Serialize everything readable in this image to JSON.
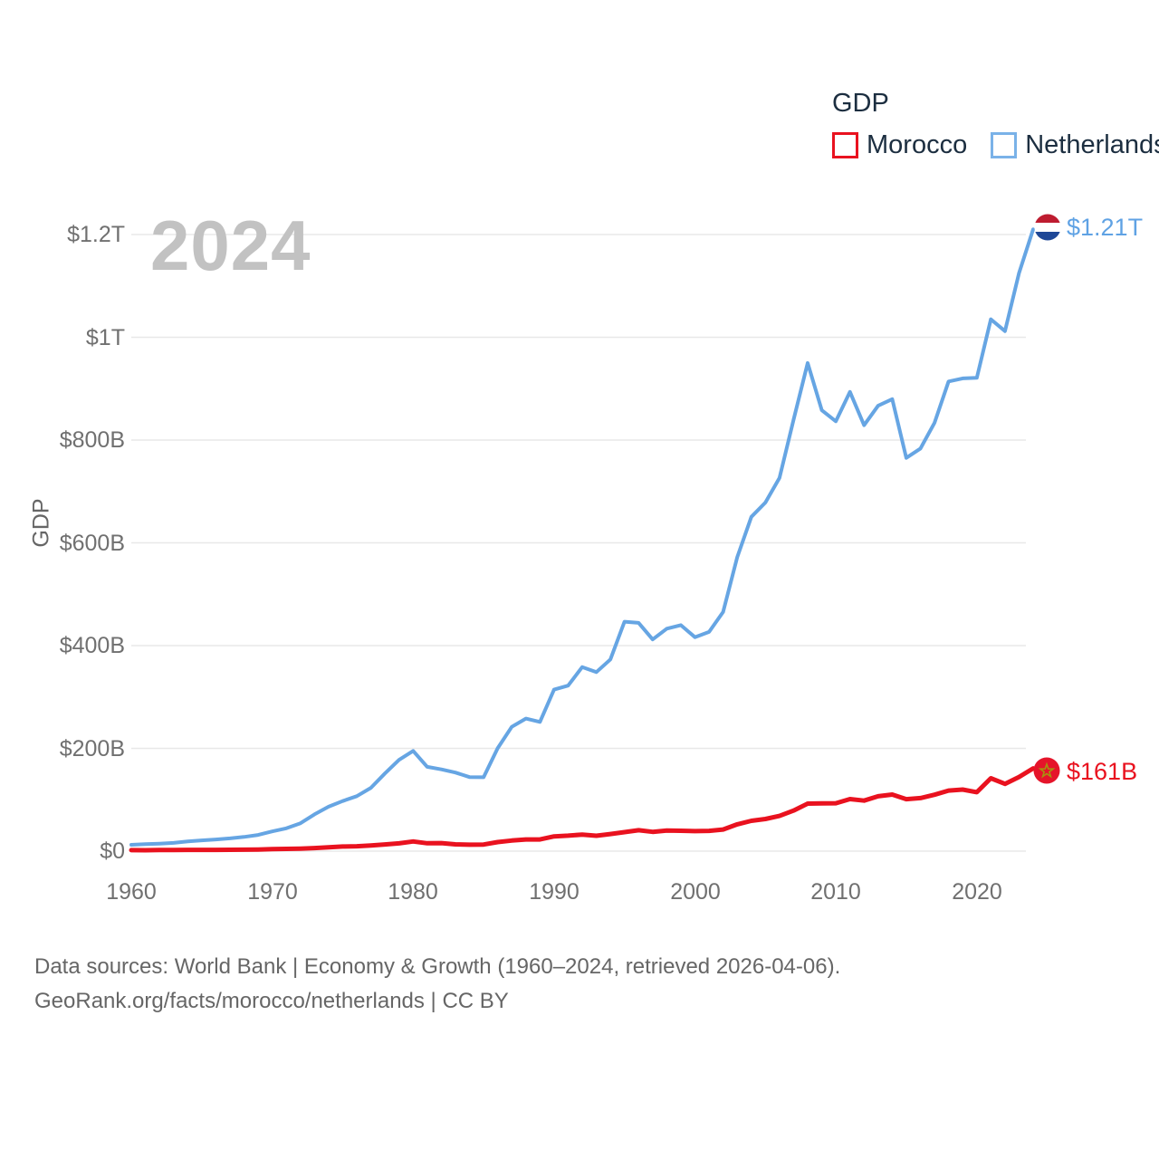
{
  "legend": {
    "title": "GDP",
    "items": [
      {
        "label": "Morocco",
        "color": "#E9121F"
      },
      {
        "label": "Netherlands",
        "color": "#7AB2E8"
      }
    ]
  },
  "chart_data": {
    "type": "line",
    "title": "GDP",
    "ylabel": "GDP",
    "xlabel": "",
    "watermark": "2024",
    "grid": "horizontal",
    "legend_position": "top-right",
    "x_start": 1960,
    "x_end": 2024,
    "ylim": [
      0,
      1260
    ],
    "y_ticks": [
      {
        "label": "$0",
        "value": 0
      },
      {
        "label": "$200B",
        "value": 200
      },
      {
        "label": "$400B",
        "value": 400
      },
      {
        "label": "$600B",
        "value": 600
      },
      {
        "label": "$800B",
        "value": 800
      },
      {
        "label": "$1T",
        "value": 1000
      },
      {
        "label": "$1.2T",
        "value": 1200
      }
    ],
    "x_ticks": [
      {
        "label": "1960",
        "value": 1960
      },
      {
        "label": "1970",
        "value": 1970
      },
      {
        "label": "1980",
        "value": 1980
      },
      {
        "label": "1990",
        "value": 1990
      },
      {
        "label": "2000",
        "value": 2000
      },
      {
        "label": "2010",
        "value": 2010
      },
      {
        "label": "2020",
        "value": 2020
      }
    ],
    "series": [
      {
        "name": "Morocco",
        "color": "#E9121F",
        "end_label": "$161B",
        "flag": "morocco",
        "values": [
          2.0,
          1.8,
          2.2,
          2.3,
          2.4,
          2.5,
          2.5,
          2.6,
          2.9,
          3.1,
          4.0,
          4.4,
          4.9,
          6.0,
          7.5,
          9.0,
          9.6,
          11.1,
          13.0,
          15.2,
          18.8,
          15.4,
          15.6,
          13.3,
          12.5,
          12.8,
          17.7,
          20.6,
          22.7,
          22.8,
          28.8,
          30.2,
          32.3,
          30.0,
          33.3,
          37.0,
          40.7,
          37.5,
          40.0,
          39.7,
          38.9,
          39.5,
          42.1,
          52.1,
          59.1,
          62.5,
          68.6,
          79.0,
          92.5,
          92.9,
          93.2,
          101.4,
          98.3,
          106.8,
          110.1,
          101.2,
          103.3,
          109.7,
          117.9,
          119.9,
          114.7,
          141.8,
          130.9,
          144.4,
          161.0
        ]
      },
      {
        "name": "Netherlands",
        "color": "#66A5E3",
        "end_label": "$1.21T",
        "flag": "netherlands",
        "values": [
          12.3,
          13.5,
          14.7,
          16.0,
          18.8,
          21.0,
          22.7,
          24.9,
          27.6,
          31.5,
          38.4,
          44.4,
          54.2,
          71.5,
          86.5,
          97.4,
          106.9,
          123.1,
          151.2,
          177.6,
          195.1,
          164.0,
          159.1,
          153.0,
          144.2,
          143.8,
          200.1,
          241.9,
          258.0,
          251.5,
          314.3,
          322.1,
          358.3,
          348.4,
          373.1,
          446.5,
          444.2,
          412.0,
          433.0,
          439.9,
          416.4,
          426.6,
          465.4,
          571.9,
          650.5,
          678.5,
          726.6,
          839.4,
          950.0,
          857.9,
          836.4,
          893.8,
          828.9,
          866.7,
          879.6,
          765.3,
          783.5,
          833.6,
          914.0,
          920.0,
          921.0,
          1035.0,
          1012.0,
          1125.0,
          1210.0
        ]
      }
    ]
  },
  "footer": {
    "line1": "Data sources: World Bank | Economy & Growth (1960–2024, retrieved 2026-04-06).",
    "line2": "GeoRank.org/facts/morocco/netherlands | CC BY"
  }
}
